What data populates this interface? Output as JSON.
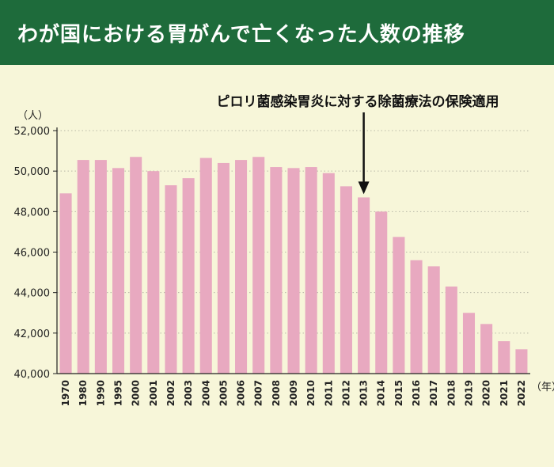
{
  "header": {
    "title": "わが国における胃がんで亡くなった人数の推移"
  },
  "colors": {
    "banner": "#1e6b3b",
    "background": "#f7f6d9",
    "bar": "#e8a9c0",
    "grid": "#b9b9a8",
    "axis": "#222222"
  },
  "chart_data": {
    "type": "bar",
    "categories": [
      "1970",
      "1980",
      "1990",
      "1995",
      "2000",
      "2001",
      "2002",
      "2003",
      "2004",
      "2005",
      "2006",
      "2007",
      "2008",
      "2009",
      "2010",
      "2011",
      "2012",
      "2013",
      "2014",
      "2015",
      "2016",
      "2017",
      "2018",
      "2019",
      "2020",
      "2021",
      "2022"
    ],
    "values": [
      48900,
      50550,
      50550,
      50150,
      50700,
      50000,
      49300,
      49650,
      50650,
      50400,
      50550,
      50700,
      50200,
      50150,
      50200,
      49900,
      49250,
      48700,
      48000,
      46750,
      45600,
      45300,
      44300,
      43000,
      42450,
      41600,
      41200
    ],
    "ylim": [
      40000,
      52000
    ],
    "yticks": [
      40000,
      42000,
      44000,
      46000,
      48000,
      50000,
      52000
    ],
    "ytick_labels": [
      "40,000",
      "42,000",
      "44,000",
      "46,000",
      "48,000",
      "50,000",
      "52,000"
    ],
    "y_unit": "（人）",
    "x_unit": "（年）",
    "grid": true,
    "annotation": {
      "text": "ピロリ菌感染胃炎に対する除菌療法の保険適用",
      "category": "2013"
    }
  }
}
